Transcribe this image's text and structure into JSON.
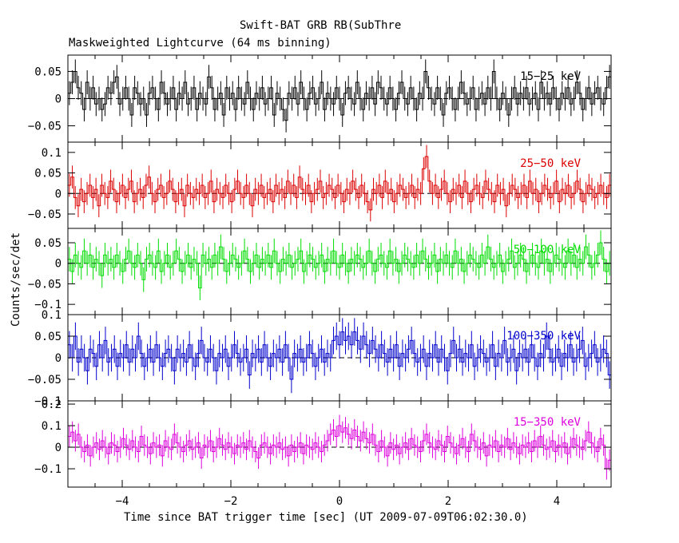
{
  "title": "Swift-BAT GRB RB(SubThre",
  "subtitle": "Maskweighted Lightcurve (64 ms binning)",
  "chart_data": {
    "type": "line",
    "xlabel": "Time since BAT trigger time [sec] (UT 2009-07-09T06:02:30.0)",
    "ylabel": "Counts/sec/det",
    "xlim": [
      -5,
      5
    ],
    "x_ticks": [
      -4,
      -2,
      0,
      2,
      4
    ],
    "x_tick_labels": [
      "−4",
      "−2",
      "0",
      "2",
      "4"
    ],
    "binning_sec": 0.064,
    "panels": [
      {
        "name": "15−25 keV",
        "color": "#000000",
        "ylim": [
          -0.08,
          0.08
        ],
        "yticks": [
          -0.05,
          0,
          0.05
        ],
        "ytick_labels": [
          "−0.05",
          "0",
          "0.05"
        ],
        "errbar": 0.022,
        "values": [
          0.01,
          0.03,
          0.05,
          0.02,
          0.01,
          -0.02,
          0.03,
          0.0,
          0.02,
          -0.01,
          0.0,
          -0.02,
          -0.01,
          0.02,
          0.01,
          0.03,
          0.04,
          -0.01,
          0.0,
          0.02,
          0.0,
          -0.03,
          0.02,
          0.01,
          -0.01,
          0.0,
          -0.03,
          0.01,
          0.02,
          0.0,
          -0.02,
          0.03,
          0.01,
          -0.01,
          0.0,
          0.02,
          -0.02,
          0.01,
          0.0,
          0.03,
          -0.01,
          0.0,
          0.02,
          -0.02,
          0.01,
          0.0,
          -0.01,
          0.04,
          0.02,
          -0.02,
          0.0,
          0.01,
          -0.03,
          0.02,
          0.0,
          0.01,
          -0.02,
          0.02,
          0.0,
          -0.01,
          0.03,
          0.0,
          -0.02,
          0.01,
          0.0,
          0.02,
          -0.01,
          0.0,
          0.02,
          -0.03,
          0.01,
          0.0,
          -0.02,
          -0.04,
          0.01,
          0.0,
          0.02,
          -0.01,
          0.03,
          0.0,
          -0.02,
          0.01,
          0.02,
          -0.01,
          0.0,
          0.03,
          -0.02,
          0.01,
          0.0,
          -0.01,
          0.02,
          0.0,
          -0.03,
          0.01,
          0.02,
          0.0,
          -0.01,
          0.03,
          0.0,
          -0.02,
          0.01,
          0.0,
          0.02,
          -0.01,
          0.03,
          0.02,
          0.0,
          -0.01,
          0.02,
          0.0,
          -0.02,
          0.01,
          0.03,
          0.0,
          -0.01,
          0.02,
          0.0,
          -0.02,
          0.01,
          0.0,
          0.05,
          0.02,
          0.0,
          -0.01,
          0.02,
          0.0,
          -0.03,
          0.01,
          0.02,
          0.0,
          -0.02,
          0.0,
          0.03,
          0.01,
          -0.01,
          0.0,
          0.02,
          -0.02,
          0.0,
          0.01,
          -0.01,
          0.02,
          0.0,
          0.05,
          0.0,
          -0.02,
          0.01,
          0.0,
          -0.03,
          0.0,
          0.02,
          -0.01,
          0.01,
          0.0,
          0.02,
          -0.01,
          0.0,
          0.01,
          -0.02,
          0.03,
          0.0,
          0.01,
          -0.01,
          0.02,
          0.0,
          -0.02,
          0.01,
          0.0,
          0.02,
          -0.01,
          0.0,
          0.03,
          0.01,
          -0.02,
          0.0,
          0.02,
          -0.01,
          0.01,
          0.02,
          0.0,
          -0.01,
          0.02,
          0.04
        ]
      },
      {
        "name": "25−50 keV",
        "color": "#dd0000",
        "ylim": [
          -0.085,
          0.125
        ],
        "yticks": [
          -0.05,
          0,
          0.05,
          0.1
        ],
        "ytick_labels": [
          "−0.05",
          "0",
          "0.05",
          "0.1"
        ],
        "errbar": 0.028,
        "values": [
          0.02,
          0.04,
          -0.01,
          -0.03,
          0.01,
          -0.02,
          0.0,
          0.02,
          -0.01,
          0.01,
          -0.03,
          0.02,
          0.0,
          -0.01,
          0.03,
          0.01,
          -0.02,
          0.0,
          0.02,
          -0.01,
          0.01,
          0.03,
          -0.02,
          0.0,
          0.01,
          -0.01,
          0.02,
          0.04,
          0.0,
          -0.02,
          0.01,
          0.02,
          -0.01,
          0.0,
          0.03,
          0.01,
          -0.02,
          0.0,
          0.01,
          -0.03,
          0.02,
          0.0,
          -0.01,
          0.01,
          0.0,
          0.02,
          -0.01,
          0.0,
          0.03,
          -0.02,
          0.01,
          0.0,
          -0.01,
          0.02,
          0.0,
          -0.02,
          0.01,
          0.03,
          0.0,
          -0.01,
          0.02,
          0.0,
          -0.03,
          0.01,
          0.0,
          0.02,
          -0.01,
          0.0,
          0.01,
          -0.02,
          0.02,
          0.0,
          0.01,
          -0.01,
          0.03,
          0.0,
          0.02,
          -0.01,
          0.04,
          0.01,
          0.0,
          0.02,
          -0.02,
          0.0,
          0.01,
          0.03,
          -0.01,
          0.0,
          0.02,
          0.01,
          -0.01,
          0.02,
          0.0,
          -0.02,
          0.01,
          0.0,
          0.03,
          0.01,
          -0.01,
          0.02,
          0.0,
          -0.02,
          -0.04,
          0.01,
          0.0,
          0.02,
          -0.01,
          0.03,
          0.0,
          0.01,
          -0.02,
          0.0,
          0.02,
          0.01,
          -0.01,
          0.0,
          0.02,
          -0.01,
          0.01,
          0.0,
          0.06,
          0.09,
          0.03,
          0.0,
          0.02,
          -0.01,
          0.01,
          0.03,
          0.0,
          -0.02,
          0.01,
          0.0,
          0.02,
          -0.01,
          0.03,
          0.0,
          -0.02,
          0.01,
          0.02,
          0.0,
          -0.01,
          0.03,
          0.01,
          0.0,
          -0.02,
          0.02,
          0.0,
          0.01,
          -0.03,
          0.0,
          0.02,
          0.01,
          -0.01,
          0.0,
          0.02,
          -0.01,
          0.03,
          0.0,
          0.01,
          -0.02,
          0.0,
          0.02,
          0.01,
          -0.01,
          0.0,
          0.03,
          -0.02,
          0.01,
          0.0,
          0.02,
          -0.01,
          0.0,
          0.03,
          0.01,
          -0.02,
          0.0,
          0.02,
          0.01,
          -0.01,
          0.0,
          0.02,
          0.0,
          -0.01,
          0.02
        ]
      },
      {
        "name": "50−100 keV",
        "color": "#00dd00",
        "ylim": [
          -0.125,
          0.085
        ],
        "yticks": [
          -0.1,
          -0.05,
          0,
          0.05
        ],
        "ytick_labels": [
          "−0.1",
          "−0.05",
          "0",
          "0.05"
        ],
        "errbar": 0.03,
        "values": [
          0.01,
          -0.02,
          0.02,
          0.0,
          -0.01,
          0.03,
          0.0,
          0.02,
          -0.01,
          0.01,
          0.0,
          -0.03,
          0.02,
          0.0,
          0.01,
          -0.01,
          0.02,
          0.0,
          -0.02,
          0.01,
          0.03,
          0.0,
          -0.01,
          0.02,
          0.0,
          -0.04,
          0.01,
          0.02,
          0.0,
          -0.01,
          0.03,
          -0.02,
          0.0,
          0.02,
          -0.01,
          0.0,
          0.03,
          0.01,
          -0.02,
          0.0,
          0.02,
          -0.01,
          0.01,
          0.0,
          -0.06,
          0.02,
          0.0,
          0.01,
          -0.01,
          0.02,
          0.0,
          0.04,
          0.01,
          -0.02,
          0.0,
          0.02,
          0.01,
          -0.01,
          0.0,
          0.03,
          0.01,
          -0.02,
          0.0,
          0.02,
          -0.01,
          0.01,
          0.0,
          0.02,
          -0.01,
          0.03,
          0.0,
          -0.02,
          0.01,
          0.0,
          0.02,
          -0.01,
          0.0,
          0.01,
          0.03,
          -0.02,
          0.0,
          0.02,
          0.01,
          -0.01,
          0.0,
          0.02,
          -0.02,
          0.01,
          0.0,
          0.03,
          0.0,
          -0.01,
          0.02,
          0.0,
          -0.02,
          0.01,
          0.0,
          0.02,
          0.01,
          -0.01,
          0.0,
          0.03,
          0.0,
          -0.02,
          0.01,
          0.02,
          0.0,
          -0.01,
          0.03,
          0.0,
          0.01,
          -0.02,
          0.0,
          0.02,
          0.01,
          0.0,
          -0.01,
          0.02,
          0.0,
          0.03,
          0.01,
          -0.01,
          0.0,
          0.02,
          -0.02,
          0.01,
          0.0,
          0.02,
          0.0,
          -0.01,
          0.03,
          0.0,
          0.01,
          -0.02,
          0.0,
          0.02,
          0.01,
          0.0,
          -0.01,
          0.02,
          0.0,
          0.04,
          0.01,
          -0.01,
          0.0,
          0.02,
          -0.02,
          0.0,
          0.01,
          0.03,
          -0.01,
          0.0,
          0.02,
          0.01,
          -0.02,
          0.0,
          0.02,
          0.0,
          -0.01,
          0.03,
          0.0,
          0.01,
          -0.02,
          0.0,
          0.02,
          0.01,
          0.0,
          -0.01,
          0.03,
          0.0,
          0.02,
          -0.01,
          0.01,
          0.0,
          0.04,
          0.02,
          -0.01,
          0.0,
          0.02,
          0.05,
          0.01,
          -0.02,
          0.0
        ]
      },
      {
        "name": "100−350 keV",
        "color": "#0000cc",
        "ylim": [
          -0.1,
          0.1
        ],
        "yticks": [
          -0.1,
          -0.05,
          0,
          0.05,
          0.1
        ],
        "ytick_labels": [
          "−0.1",
          "−0.05",
          "0",
          "0.05",
          "0.1"
        ],
        "errbar": 0.032,
        "values": [
          0.03,
          0.0,
          0.05,
          -0.01,
          0.02,
          0.0,
          -0.03,
          0.02,
          0.01,
          -0.02,
          0.03,
          0.0,
          0.04,
          -0.01,
          0.0,
          0.02,
          -0.02,
          0.01,
          0.0,
          0.03,
          -0.01,
          0.02,
          0.0,
          0.05,
          0.01,
          -0.02,
          0.0,
          0.02,
          -0.01,
          0.03,
          0.0,
          -0.02,
          0.01,
          0.02,
          0.0,
          -0.03,
          0.02,
          0.0,
          0.01,
          -0.01,
          0.03,
          0.0,
          -0.02,
          0.01,
          0.04,
          0.0,
          -0.01,
          0.02,
          0.0,
          -0.03,
          0.01,
          0.0,
          0.02,
          -0.02,
          0.0,
          0.03,
          0.01,
          -0.01,
          0.0,
          0.02,
          -0.04,
          0.01,
          0.0,
          0.02,
          -0.01,
          0.03,
          0.0,
          -0.02,
          0.01,
          0.0,
          0.02,
          -0.01,
          0.03,
          0.0,
          -0.05,
          0.01,
          0.0,
          0.02,
          -0.01,
          0.0,
          0.03,
          0.01,
          -0.02,
          0.0,
          0.02,
          -0.01,
          0.01,
          0.0,
          0.04,
          0.05,
          0.03,
          0.06,
          0.04,
          0.05,
          0.03,
          0.06,
          0.04,
          0.02,
          0.05,
          0.03,
          0.01,
          0.04,
          0.02,
          0.0,
          0.03,
          0.01,
          -0.01,
          0.02,
          0.0,
          0.03,
          -0.02,
          0.01,
          0.0,
          0.02,
          0.04,
          0.01,
          -0.01,
          0.0,
          0.02,
          -0.02,
          0.01,
          0.0,
          0.03,
          -0.01,
          0.02,
          0.0,
          -0.03,
          0.01,
          0.04,
          0.0,
          0.02,
          -0.01,
          0.01,
          0.0,
          0.03,
          -0.02,
          0.0,
          0.02,
          0.01,
          -0.01,
          0.0,
          0.03,
          -0.02,
          0.01,
          0.0,
          0.04,
          -0.01,
          0.0,
          0.02,
          -0.03,
          0.01,
          0.0,
          0.02,
          -0.01,
          0.03,
          0.0,
          -0.02,
          0.01,
          0.0,
          0.05,
          0.02,
          -0.01,
          0.0,
          0.02,
          -0.02,
          0.01,
          0.0,
          0.03,
          -0.01,
          0.0,
          0.02,
          0.04,
          -0.02,
          0.0,
          0.01,
          0.03,
          -0.01,
          0.0,
          0.02,
          0.01,
          -0.04
        ]
      },
      {
        "name": "15−350 keV",
        "color": "#dd00dd",
        "ylim": [
          -0.185,
          0.215
        ],
        "yticks": [
          -0.1,
          0,
          0.1,
          0.2
        ],
        "ytick_labels": [
          "−0.1",
          "0",
          "0.1",
          "0.2"
        ],
        "errbar": 0.05,
        "values": [
          0.05,
          0.07,
          0.03,
          0.06,
          0.0,
          -0.02,
          0.01,
          -0.04,
          0.0,
          0.02,
          -0.01,
          0.03,
          0.0,
          -0.03,
          0.02,
          0.01,
          -0.02,
          0.0,
          0.04,
          0.01,
          -0.01,
          0.03,
          0.0,
          -0.02,
          0.05,
          0.01,
          0.0,
          -0.03,
          0.02,
          0.0,
          0.01,
          -0.04,
          0.03,
          0.0,
          -0.01,
          0.06,
          0.02,
          0.0,
          -0.02,
          0.01,
          0.03,
          -0.01,
          0.0,
          0.02,
          -0.05,
          0.01,
          0.0,
          0.03,
          -0.02,
          0.0,
          0.04,
          0.01,
          -0.01,
          0.02,
          0.0,
          -0.03,
          0.01,
          0.0,
          0.02,
          -0.01,
          0.03,
          0.0,
          -0.02,
          -0.05,
          0.01,
          0.02,
          0.0,
          -0.03,
          0.01,
          0.0,
          0.02,
          -0.01,
          0.0,
          -0.04,
          0.01,
          -0.02,
          0.0,
          0.02,
          -0.03,
          0.01,
          0.0,
          -0.01,
          0.02,
          0.0,
          -0.02,
          0.01,
          0.03,
          0.06,
          0.08,
          0.05,
          0.1,
          0.07,
          0.09,
          0.06,
          0.04,
          0.08,
          0.05,
          0.03,
          0.07,
          0.04,
          0.02,
          0.06,
          0.01,
          -0.02,
          0.03,
          0.0,
          -0.04,
          0.02,
          -0.01,
          0.01,
          -0.03,
          0.0,
          0.02,
          -0.01,
          0.04,
          0.01,
          0.0,
          -0.02,
          0.03,
          0.06,
          0.02,
          0.0,
          -0.01,
          0.03,
          0.01,
          -0.02,
          0.05,
          0.02,
          0.0,
          -0.03,
          0.01,
          0.04,
          0.0,
          -0.02,
          0.06,
          0.03,
          0.0,
          -0.01,
          0.02,
          -0.04,
          0.01,
          0.0,
          0.03,
          -0.02,
          0.01,
          0.0,
          0.04,
          -0.01,
          0.02,
          0.0,
          -0.03,
          0.01,
          0.0,
          0.02,
          -0.02,
          0.03,
          0.0,
          0.05,
          0.01,
          -0.01,
          0.0,
          0.03,
          -0.02,
          0.01,
          0.0,
          0.02,
          -0.03,
          0.0,
          0.04,
          0.01,
          0.0,
          -0.01,
          0.03,
          0.07,
          0.02,
          0.0,
          -0.02,
          0.04,
          0.01,
          -0.1,
          -0.06
        ]
      }
    ]
  }
}
